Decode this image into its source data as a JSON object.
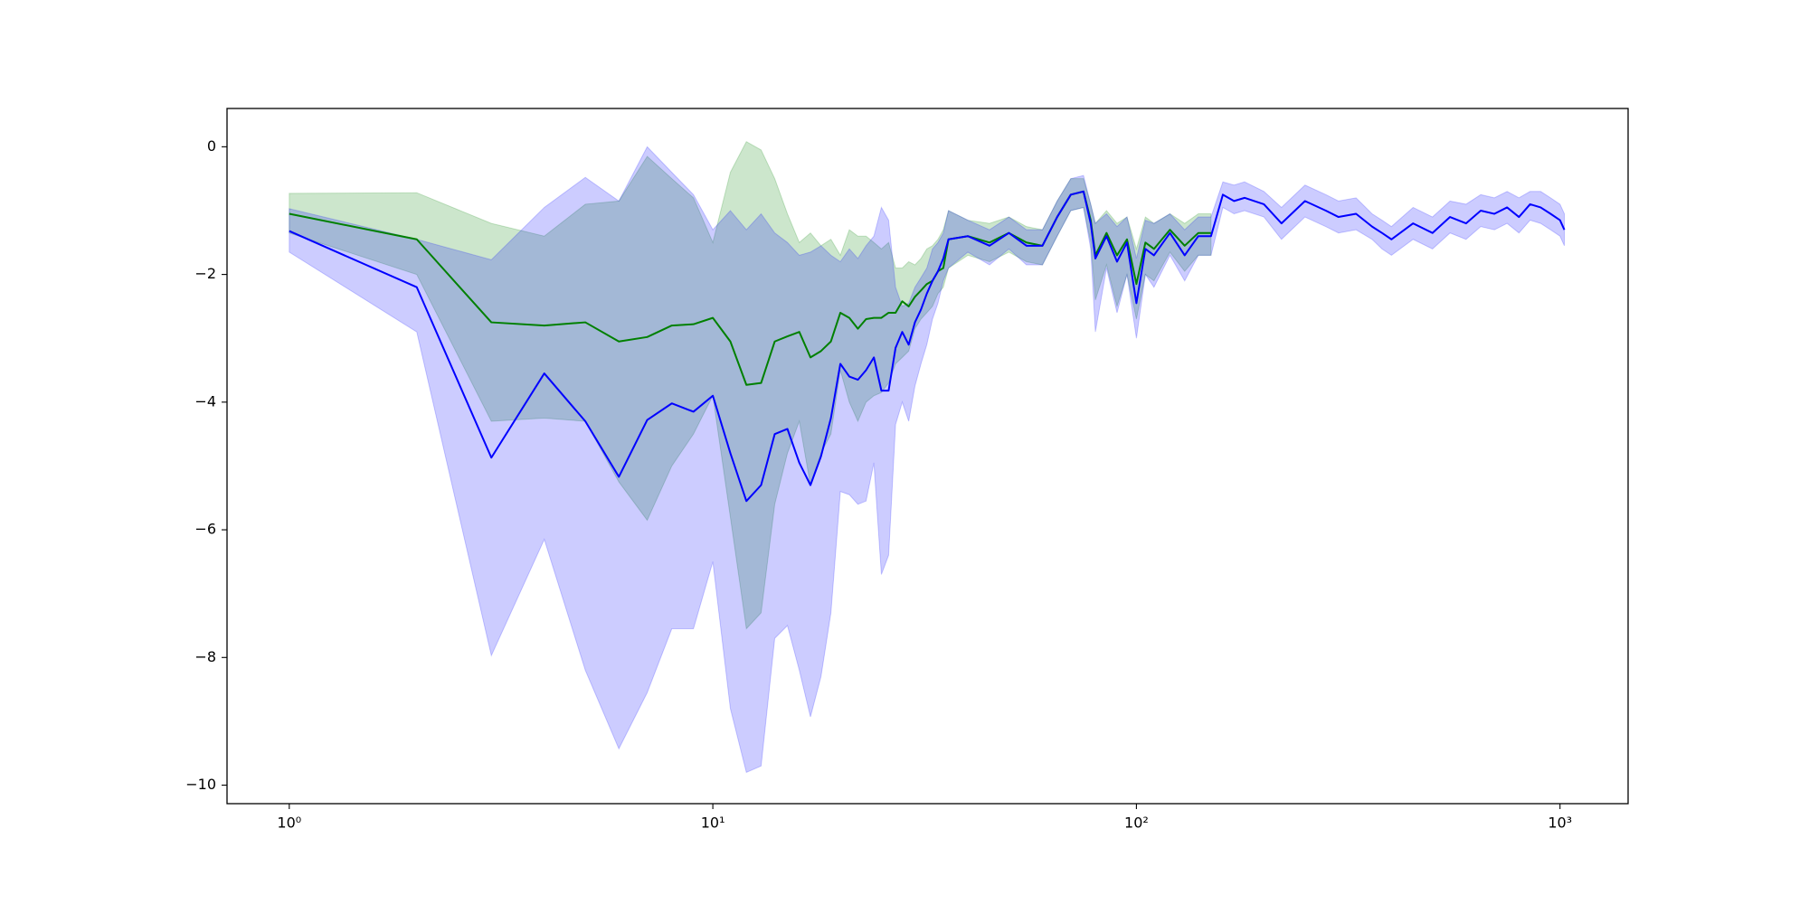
{
  "chart_data": {
    "type": "line",
    "log_x": true,
    "grid": false,
    "x": [
      1,
      2,
      3,
      4,
      5,
      6,
      7,
      8,
      9,
      10,
      11,
      12,
      13,
      14,
      15,
      16,
      17,
      18,
      19,
      20,
      21,
      22,
      23,
      24,
      25,
      26,
      27,
      28,
      29,
      30,
      31,
      32,
      33,
      34,
      35,
      36,
      40,
      45,
      50,
      55,
      60,
      65,
      70,
      75,
      78,
      80,
      85,
      90,
      95,
      100,
      105,
      110,
      120,
      130,
      140,
      150,
      160,
      170,
      180,
      200,
      220,
      250,
      280,
      300,
      330,
      360,
      380,
      400,
      450,
      500,
      550,
      600,
      650,
      700,
      750,
      800,
      850,
      900,
      950,
      1000,
      1024
    ],
    "series": [
      {
        "color": "green",
        "values": [
          -1.05,
          -1.45,
          -2.75,
          -2.8,
          -2.75,
          -3.05,
          -2.98,
          -2.8,
          -2.78,
          -2.68,
          -3.05,
          -3.73,
          -3.7,
          -3.05,
          -2.97,
          -2.9,
          -3.3,
          -3.2,
          -3.05,
          -2.6,
          -2.68,
          -2.85,
          -2.7,
          -2.68,
          -2.68,
          -2.6,
          -2.6,
          -2.42,
          -2.5,
          -2.35,
          -2.25,
          -2.15,
          -2.1,
          -1.95,
          -1.9,
          -1.45,
          -1.4,
          -1.5,
          -1.35,
          -1.5,
          -1.55,
          -1.1,
          -0.75,
          -0.7,
          -1.15,
          -1.7,
          -1.35,
          -1.7,
          -1.45,
          -2.15,
          -1.5,
          -1.6,
          -1.3,
          -1.55,
          -1.35,
          -1.35,
          null,
          null,
          null,
          null,
          null,
          null,
          null,
          null,
          null,
          null,
          null,
          null,
          null,
          null,
          null,
          null,
          null,
          null,
          null,
          null,
          null,
          null,
          null,
          null,
          null
        ],
        "upper": [
          -0.73,
          -0.72,
          -1.2,
          -1.4,
          -0.9,
          -0.85,
          -0.15,
          -0.5,
          -0.8,
          -1.5,
          -0.4,
          0.08,
          -0.05,
          -0.5,
          -1.05,
          -1.5,
          -1.35,
          -1.55,
          -1.45,
          -1.7,
          -1.3,
          -1.4,
          -1.4,
          -1.5,
          -1.6,
          -1.5,
          -1.9,
          -1.9,
          -1.8,
          -1.85,
          -1.75,
          -1.6,
          -1.55,
          -1.45,
          -1.3,
          -1.0,
          -1.15,
          -1.2,
          -1.1,
          -1.25,
          -1.3,
          -0.85,
          -0.5,
          -0.5,
          -0.9,
          -1.2,
          -1.0,
          -1.2,
          -1.1,
          -1.6,
          -1.1,
          -1.2,
          -1.05,
          -1.2,
          -1.05,
          -1.05,
          null,
          null,
          null,
          null,
          null,
          null,
          null,
          null,
          null,
          null,
          null,
          null,
          null,
          null,
          null,
          null,
          null,
          null,
          null,
          null,
          null,
          null,
          null,
          null,
          null
        ],
        "lower": [
          -1.35,
          -2.0,
          -4.3,
          -4.25,
          -4.3,
          -5.25,
          -5.85,
          -5.0,
          -4.5,
          -3.9,
          -5.8,
          -7.55,
          -7.3,
          -5.6,
          -4.8,
          -4.3,
          -5.3,
          -4.8,
          -4.5,
          -3.5,
          -4.0,
          -4.3,
          -4.0,
          -3.9,
          -3.85,
          -3.7,
          -3.4,
          -3.3,
          -3.2,
          -2.85,
          -2.7,
          -2.6,
          -2.5,
          -2.3,
          -2.2,
          -1.9,
          -1.7,
          -1.8,
          -1.65,
          -1.8,
          -1.85,
          -1.4,
          -1.0,
          -0.95,
          -1.5,
          -2.4,
          -1.85,
          -2.5,
          -2.0,
          -2.7,
          -2.0,
          -2.1,
          -1.65,
          -1.95,
          -1.7,
          -1.7,
          null,
          null,
          null,
          null,
          null,
          null,
          null,
          null,
          null,
          null,
          null,
          null,
          null,
          null,
          null,
          null,
          null,
          null,
          null,
          null,
          null,
          null,
          null,
          null,
          null
        ]
      },
      {
        "color": "blue",
        "values": [
          -1.32,
          -2.2,
          -4.87,
          -3.55,
          -4.3,
          -5.17,
          -4.28,
          -4.02,
          -4.15,
          -3.9,
          -4.8,
          -5.55,
          -5.3,
          -4.5,
          -4.42,
          -4.95,
          -5.3,
          -4.85,
          -4.25,
          -3.4,
          -3.6,
          -3.65,
          -3.5,
          -3.3,
          -3.82,
          -3.82,
          -3.15,
          -2.9,
          -3.1,
          -2.75,
          -2.55,
          -2.3,
          -2.1,
          -1.95,
          -1.75,
          -1.45,
          -1.4,
          -1.55,
          -1.35,
          -1.55,
          -1.55,
          -1.1,
          -0.75,
          -0.7,
          -1.2,
          -1.75,
          -1.4,
          -1.8,
          -1.5,
          -2.45,
          -1.6,
          -1.7,
          -1.35,
          -1.7,
          -1.4,
          -1.4,
          -0.75,
          -0.85,
          -0.8,
          -0.9,
          -1.2,
          -0.85,
          -1.0,
          -1.1,
          -1.05,
          -1.25,
          -1.35,
          -1.45,
          -1.2,
          -1.35,
          -1.1,
          -1.2,
          -1.0,
          -1.05,
          -0.95,
          -1.1,
          -0.9,
          -0.95,
          -1.05,
          -1.15,
          -1.3
        ],
        "upper": [
          -0.97,
          -1.45,
          -1.77,
          -0.95,
          -0.48,
          -0.85,
          0.0,
          -0.4,
          -0.75,
          -1.3,
          -1.0,
          -1.3,
          -1.05,
          -1.35,
          -1.5,
          -1.7,
          -1.65,
          -1.55,
          -1.7,
          -1.8,
          -1.6,
          -1.75,
          -1.55,
          -1.4,
          -0.95,
          -1.15,
          -2.2,
          -2.5,
          -2.45,
          -2.2,
          -2.05,
          -1.9,
          -1.6,
          -1.5,
          -1.35,
          -1.0,
          -1.15,
          -1.3,
          -1.1,
          -1.3,
          -1.3,
          -0.85,
          -0.5,
          -0.45,
          -0.9,
          -1.2,
          -1.05,
          -1.25,
          -1.1,
          -1.75,
          -1.15,
          -1.2,
          -1.05,
          -1.3,
          -1.1,
          -1.1,
          -0.55,
          -0.6,
          -0.55,
          -0.7,
          -0.95,
          -0.6,
          -0.75,
          -0.85,
          -0.8,
          -1.05,
          -1.15,
          -1.25,
          -0.95,
          -1.1,
          -0.85,
          -0.9,
          -0.75,
          -0.8,
          -0.7,
          -0.8,
          -0.7,
          -0.7,
          -0.8,
          -0.9,
          -1.05
        ],
        "lower": [
          -1.65,
          -2.9,
          -7.97,
          -6.15,
          -8.2,
          -9.43,
          -8.55,
          -7.55,
          -7.55,
          -6.5,
          -8.8,
          -9.8,
          -9.7,
          -7.7,
          -7.5,
          -8.2,
          -8.93,
          -8.3,
          -7.3,
          -5.4,
          -5.45,
          -5.6,
          -5.55,
          -4.95,
          -6.7,
          -6.4,
          -4.35,
          -4.0,
          -4.3,
          -3.75,
          -3.4,
          -3.1,
          -2.7,
          -2.45,
          -2.1,
          -1.9,
          -1.65,
          -1.85,
          -1.6,
          -1.85,
          -1.85,
          -1.4,
          -1.0,
          -0.95,
          -1.6,
          -2.9,
          -1.9,
          -2.6,
          -2.0,
          -3.0,
          -2.0,
          -2.2,
          -1.7,
          -2.1,
          -1.7,
          -1.7,
          -0.95,
          -1.05,
          -1.0,
          -1.1,
          -1.45,
          -1.1,
          -1.25,
          -1.35,
          -1.3,
          -1.45,
          -1.6,
          -1.7,
          -1.45,
          -1.6,
          -1.35,
          -1.45,
          -1.25,
          -1.3,
          -1.2,
          -1.35,
          -1.15,
          -1.2,
          -1.3,
          -1.4,
          -1.55
        ]
      }
    ],
    "xlim": [
      0.713,
      1448
    ],
    "ylim": [
      -10.29,
      0.6
    ],
    "xticks": [
      {
        "value": 1,
        "label": "10⁰"
      },
      {
        "value": 10,
        "label": "10¹"
      },
      {
        "value": 100,
        "label": "10²"
      },
      {
        "value": 1000,
        "label": "10³"
      }
    ],
    "yticks": [
      {
        "value": 0,
        "label": "0"
      },
      {
        "value": -2,
        "label": "−2"
      },
      {
        "value": -4,
        "label": "−4"
      },
      {
        "value": -6,
        "label": "−6"
      },
      {
        "value": -8,
        "label": "−8"
      },
      {
        "value": -10,
        "label": "−10"
      }
    ]
  }
}
